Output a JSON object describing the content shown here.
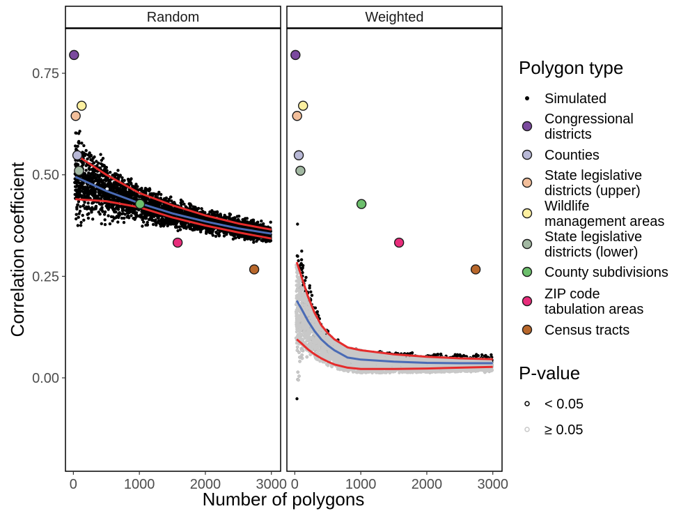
{
  "chart_data": {
    "type": "scatter",
    "facets": [
      "Random",
      "Weighted"
    ],
    "xlabel": "Number of polygons",
    "ylabel": "Correlation coefficient",
    "xlim": [
      -120,
      3140
    ],
    "ylim": [
      -0.23,
      0.86
    ],
    "x_ticks": [
      0,
      1000,
      2000,
      3000
    ],
    "x_tick_labels": [
      "0",
      "1000",
      "2000",
      "3000"
    ],
    "y_ticks": [
      0.0,
      0.25,
      0.5,
      0.75
    ],
    "y_tick_labels": [
      "0.00",
      "0.25",
      "0.50",
      "0.75"
    ],
    "grid": false,
    "legend_position": "right",
    "polygon_type_legend": {
      "title": "Polygon type",
      "items": [
        {
          "label": "Simulated",
          "color": "#000000",
          "simulated": true
        },
        {
          "label": "Congressional districts",
          "color": "#7B4A9E"
        },
        {
          "label": "Counties",
          "color": "#B8B8D6"
        },
        {
          "label": "State legislative districts (upper)",
          "color": "#F2BE9A"
        },
        {
          "label": "Wildlife management areas",
          "color": "#FDF0A0"
        },
        {
          "label": "State legislative districts (lower)",
          "color": "#A2B8A2"
        },
        {
          "label": "County subdivisions",
          "color": "#6CBF6C"
        },
        {
          "label": "ZIP code tabulation areas",
          "color": "#E82D7B"
        },
        {
          "label": "Census tracts",
          "color": "#B8672B"
        }
      ]
    },
    "pvalue_legend": {
      "title": "P-value",
      "items": [
        {
          "label": "< 0.05",
          "color": "#000000"
        },
        {
          "label": "≥ 0.05",
          "color": "#c8c8c8"
        }
      ]
    },
    "observed": {
      "Random": [
        {
          "type": "Congressional districts",
          "x": 10,
          "y": 0.795
        },
        {
          "type": "State legislative districts (upper)",
          "x": 35,
          "y": 0.645
        },
        {
          "type": "Wildlife management areas",
          "x": 125,
          "y": 0.67
        },
        {
          "type": "Counties",
          "x": 60,
          "y": 0.548
        },
        {
          "type": "State legislative districts (lower)",
          "x": 85,
          "y": 0.51
        },
        {
          "type": "County subdivisions",
          "x": 1010,
          "y": 0.428
        },
        {
          "type": "ZIP code tabulation areas",
          "x": 1580,
          "y": 0.333
        },
        {
          "type": "Census tracts",
          "x": 2740,
          "y": 0.267
        }
      ],
      "Weighted": [
        {
          "type": "Congressional districts",
          "x": 10,
          "y": 0.795
        },
        {
          "type": "State legislative districts (upper)",
          "x": 35,
          "y": 0.645
        },
        {
          "type": "Wildlife management areas",
          "x": 125,
          "y": 0.67
        },
        {
          "type": "Counties",
          "x": 60,
          "y": 0.548
        },
        {
          "type": "State legislative districts (lower)",
          "x": 85,
          "y": 0.51
        },
        {
          "type": "County subdivisions",
          "x": 1010,
          "y": 0.428
        },
        {
          "type": "ZIP code tabulation areas",
          "x": 1580,
          "y": 0.333
        },
        {
          "type": "Census tracts",
          "x": 2740,
          "y": 0.267
        }
      ]
    },
    "trend_lines": {
      "Random": {
        "x": [
          30,
          500,
          1000,
          1500,
          2000,
          2500,
          3000
        ],
        "mean": [
          0.495,
          0.46,
          0.43,
          0.405,
          0.385,
          0.368,
          0.355
        ],
        "upper": [
          0.55,
          0.5,
          0.455,
          0.425,
          0.4,
          0.38,
          0.365
        ],
        "lower": [
          0.44,
          0.435,
          0.42,
          0.395,
          0.375,
          0.358,
          0.343
        ]
      },
      "Weighted": {
        "x": [
          30,
          100,
          200,
          300,
          400,
          500,
          600,
          800,
          1000,
          1500,
          2000,
          2500,
          3000
        ],
        "mean": [
          0.19,
          0.17,
          0.14,
          0.115,
          0.095,
          0.08,
          0.068,
          0.05,
          0.045,
          0.04,
          0.037,
          0.036,
          0.036
        ],
        "upper": [
          0.285,
          0.25,
          0.2,
          0.16,
          0.13,
          0.11,
          0.095,
          0.075,
          0.068,
          0.058,
          0.052,
          0.048,
          0.046
        ],
        "lower": [
          0.095,
          0.085,
          0.07,
          0.058,
          0.048,
          0.04,
          0.033,
          0.025,
          0.022,
          0.022,
          0.023,
          0.025,
          0.027
        ]
      }
    },
    "colors": {
      "mean_line": "#4A6BB5",
      "interval_line": "#E52B2B",
      "simulated": "#000000",
      "not_significant": "#c8c8c8"
    }
  }
}
